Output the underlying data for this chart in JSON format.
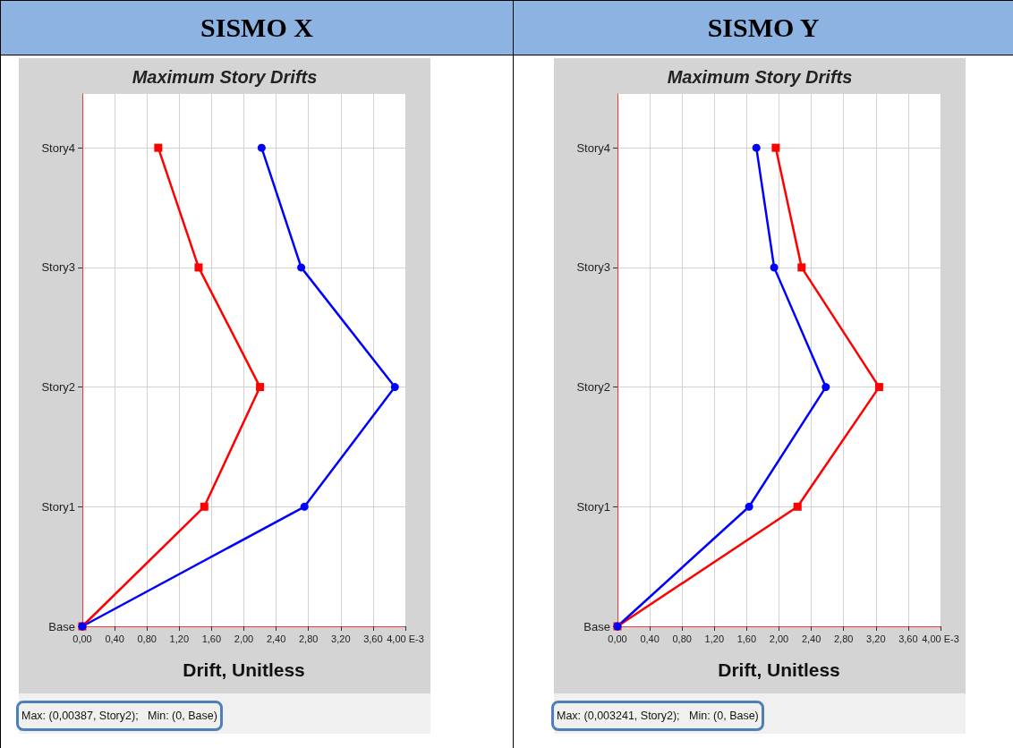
{
  "chart_data": [
    {
      "type": "line",
      "orientation": "horizontal",
      "title": "Maximum Story Drifts",
      "xlabel": "Drift, Unitless",
      "categories": [
        "Story4",
        "Story3",
        "Story2",
        "Story1",
        "Base"
      ],
      "series": [
        {
          "color": "#ff0000",
          "marker": "square",
          "values": [
            0.94,
            1.44,
            2.2,
            1.51,
            0
          ]
        },
        {
          "color": "#0000ff",
          "marker": "circle",
          "values": [
            2.22,
            2.71,
            3.87,
            2.75,
            0
          ]
        }
      ],
      "xlim": [
        0,
        4
      ],
      "xticks": [
        {
          "value": 0,
          "label": "0,00"
        },
        {
          "value": 0.4,
          "label": "0,40"
        },
        {
          "value": 0.8,
          "label": "0,80"
        },
        {
          "value": 1.2,
          "label": "1,20"
        },
        {
          "value": 1.6,
          "label": "1,60"
        },
        {
          "value": 2,
          "label": "2,00"
        },
        {
          "value": 2.4,
          "label": "2,40"
        },
        {
          "value": 2.8,
          "label": "2,80"
        },
        {
          "value": 3.2,
          "label": "3,20"
        },
        {
          "value": 3.6,
          "label": "3,60"
        },
        {
          "value": 4,
          "label": "4,00 E-3"
        }
      ],
      "grid": true,
      "annotations": [
        "SISMO X",
        "Max: (0,00387, Story2);   Min: (0, Base)"
      ]
    },
    {
      "type": "line",
      "orientation": "horizontal",
      "title": "Maximum Story Drifts",
      "xlabel": "Drift, Unitless",
      "categories": [
        "Story4",
        "Story3",
        "Story2",
        "Story1",
        "Base"
      ],
      "series": [
        {
          "color": "#ff0000",
          "marker": "square",
          "values": [
            1.96,
            2.28,
            3.24,
            2.23,
            0
          ]
        },
        {
          "color": "#0000ff",
          "marker": "circle",
          "values": [
            1.72,
            1.94,
            2.58,
            1.63,
            0
          ]
        }
      ],
      "xlim": [
        0,
        4
      ],
      "xticks": [
        {
          "value": 0,
          "label": "0,00"
        },
        {
          "value": 0.4,
          "label": "0,40"
        },
        {
          "value": 0.8,
          "label": "0,80"
        },
        {
          "value": 1.2,
          "label": "1,20"
        },
        {
          "value": 1.6,
          "label": "1,60"
        },
        {
          "value": 2,
          "label": "2,00"
        },
        {
          "value": 2.4,
          "label": "2,40"
        },
        {
          "value": 2.8,
          "label": "2,80"
        },
        {
          "value": 3.2,
          "label": "3,20"
        },
        {
          "value": 3.6,
          "label": "3,60"
        },
        {
          "value": 4,
          "label": "4,00 E-3"
        }
      ],
      "grid": true,
      "annotations": [
        "SISMO Y",
        "Max: (0,003241, Story2);   Min: (0, Base)"
      ]
    }
  ]
}
